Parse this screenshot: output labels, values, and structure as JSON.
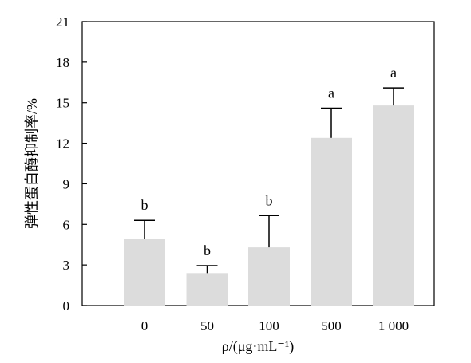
{
  "chart_data": {
    "type": "bar",
    "categories": [
      "0",
      "50",
      "100",
      "500",
      "1 000"
    ],
    "values": [
      4.9,
      2.4,
      4.3,
      12.4,
      14.8
    ],
    "error": [
      1.4,
      0.55,
      2.35,
      2.2,
      1.3
    ],
    "significance": [
      "b",
      "b",
      "b",
      "a",
      "a"
    ],
    "xlabel": "ρ/(μg·mL⁻¹)",
    "ylabel": "弹性蛋白酶抑制率/%",
    "ylim": [
      0,
      21
    ],
    "yticks": [
      "0",
      "3",
      "6",
      "9",
      "12",
      "15",
      "18",
      "21"
    ],
    "bar_color": "#dcdcdc",
    "axis_color": "#000000",
    "grid": false,
    "legend": "none"
  }
}
